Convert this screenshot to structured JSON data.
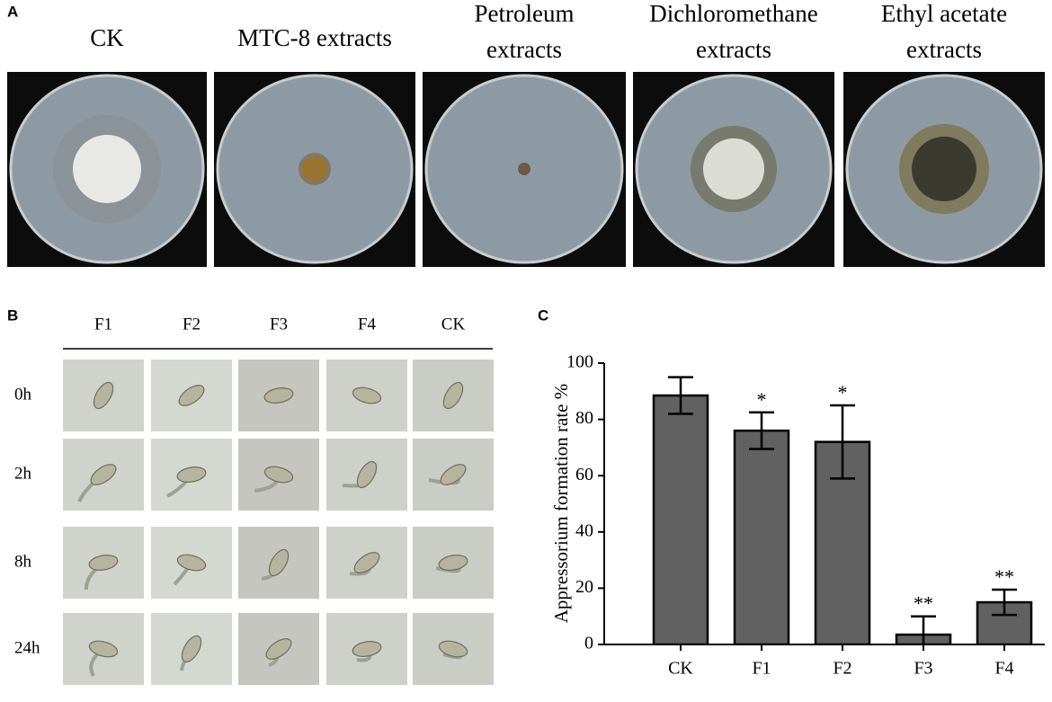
{
  "panel_a": {
    "label": "A",
    "plates": [
      {
        "title": [
          "CK"
        ]
      },
      {
        "title": [
          "MTC-8 extracts"
        ]
      },
      {
        "title": [
          "Petroleum",
          "extracts"
        ]
      },
      {
        "title": [
          "Dichloromethane",
          "extracts"
        ]
      },
      {
        "title": [
          "Ethyl acetate",
          "extracts"
        ]
      }
    ]
  },
  "panel_b": {
    "label": "B",
    "columns": [
      "F1",
      "F2",
      "F3",
      "F4",
      "CK"
    ],
    "rows": [
      "0h",
      "2h",
      "8h",
      "24h"
    ]
  },
  "panel_c": {
    "label": "C"
  },
  "chart_data": {
    "type": "bar",
    "y_label": "Appressorium formation rate %",
    "categories": [
      "CK",
      "F1",
      "F2",
      "F3",
      "F4"
    ],
    "values": [
      88.5,
      76,
      72,
      3.5,
      15
    ],
    "errors": [
      6.5,
      6.5,
      13,
      6.5,
      4.5
    ],
    "significance": [
      null,
      "*",
      "*",
      "**",
      "**"
    ],
    "color": "#616161",
    "ylim": [
      0,
      100
    ],
    "yticks": [
      0,
      20,
      40,
      60,
      80,
      100
    ]
  }
}
